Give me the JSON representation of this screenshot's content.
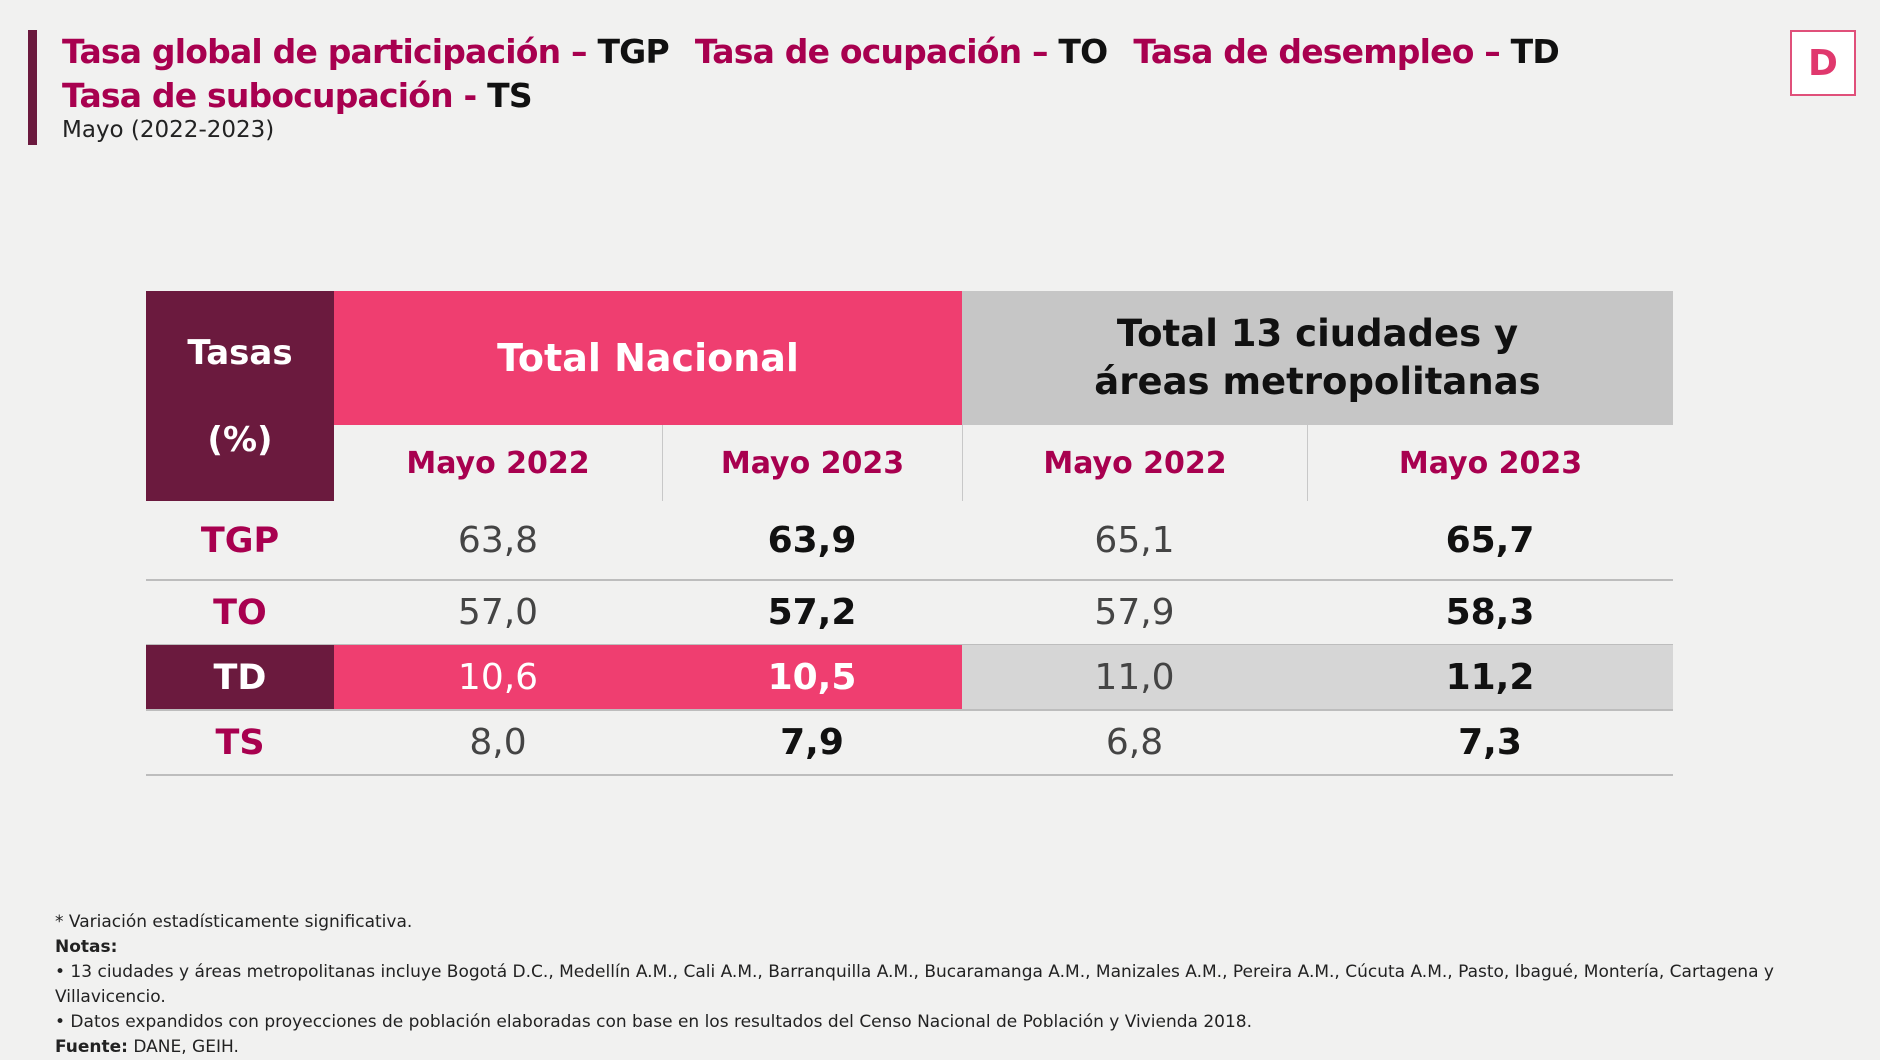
{
  "header": {
    "title_parts": [
      {
        "label": "Tasa global de participación – ",
        "abbr": "TGP"
      },
      {
        "label": "Tasa de ocupación – ",
        "abbr": "TO"
      },
      {
        "label": "Tasa de desempleo – ",
        "abbr": "TD"
      },
      {
        "label": "Tasa de subocupación - ",
        "abbr": "TS"
      }
    ],
    "subtitle": "Mayo (2022-2023)",
    "logo_letter": "D"
  },
  "table": {
    "corner_top": "Tasas",
    "corner_bottom": "(%)",
    "group_national": "Total Nacional",
    "group_13": "Total 13 ciudades y áreas metropolitanas",
    "subheaders": [
      "Mayo 2022",
      "Mayo 2023",
      "Mayo 2022",
      "Mayo 2023"
    ],
    "rows": [
      {
        "label": "TGP",
        "values": [
          "63,8",
          "63,9",
          "65,1",
          "65,7"
        ]
      },
      {
        "label": "TO",
        "values": [
          "57,0",
          "57,2",
          "57,9",
          "58,3"
        ]
      },
      {
        "label": "TD",
        "values": [
          "10,6",
          "10,5",
          "11,0",
          "11,2"
        ]
      },
      {
        "label": "TS",
        "values": [
          "8,0",
          "7,9",
          "6,8",
          "7,3"
        ]
      }
    ],
    "colors": {
      "brand_dark": "#6b1a3e",
      "brand_pink": "#ef3e70",
      "gray": "#c6c6c6",
      "label": "#a8004f"
    }
  },
  "footer": {
    "significance": "* Variación estadísticamente significativa.",
    "notes_label": "Notas:",
    "note1": "• 13 ciudades y áreas metropolitanas incluye Bogotá D.C., Medellín A.M., Cali A.M., Barranquilla A.M., Bucaramanga A.M., Manizales A.M., Pereira A.M., Cúcuta A.M., Pasto, Ibagué, Montería, Cartagena y Villavicencio.",
    "note2": "• Datos expandidos con proyecciones de población elaboradas con base en los resultados del Censo Nacional de Población y Vivienda 2018.",
    "source_label": "Fuente:",
    "source": " DANE, GEIH."
  }
}
